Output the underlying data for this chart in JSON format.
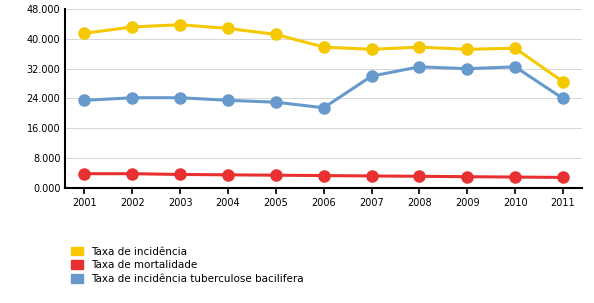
{
  "years": [
    2001,
    2002,
    2003,
    2004,
    2005,
    2006,
    2007,
    2008,
    2009,
    2010,
    2011
  ],
  "incidencia": [
    41500,
    43200,
    43800,
    42800,
    41200,
    37800,
    37200,
    37800,
    37200,
    37500,
    28500
  ],
  "mortalidade": [
    3800,
    3800,
    3600,
    3500,
    3400,
    3300,
    3200,
    3100,
    3000,
    2900,
    2800
  ],
  "bacilifera": [
    23500,
    24200,
    24200,
    23500,
    23000,
    21500,
    30000,
    32500,
    32000,
    32500,
    24000
  ],
  "color_incidencia": "#f5c800",
  "color_mortalidade": "#e83030",
  "color_bacilifera": "#6699cc",
  "ylim": [
    0,
    48000
  ],
  "yticks": [
    0,
    8000,
    16000,
    24000,
    32000,
    40000,
    48000
  ],
  "ytick_labels": [
    "0.000",
    "8.000",
    "16.000",
    "24.000",
    "32.000",
    "40.000",
    "48.000"
  ],
  "legend_incidencia": "Taxa de incidência",
  "legend_mortalidade": "Taxa de mortalidade",
  "legend_bacilifera": "Taxa de incidência tuberculose bacilifera",
  "marker": "o",
  "linewidth": 2.2,
  "markersize": 8
}
